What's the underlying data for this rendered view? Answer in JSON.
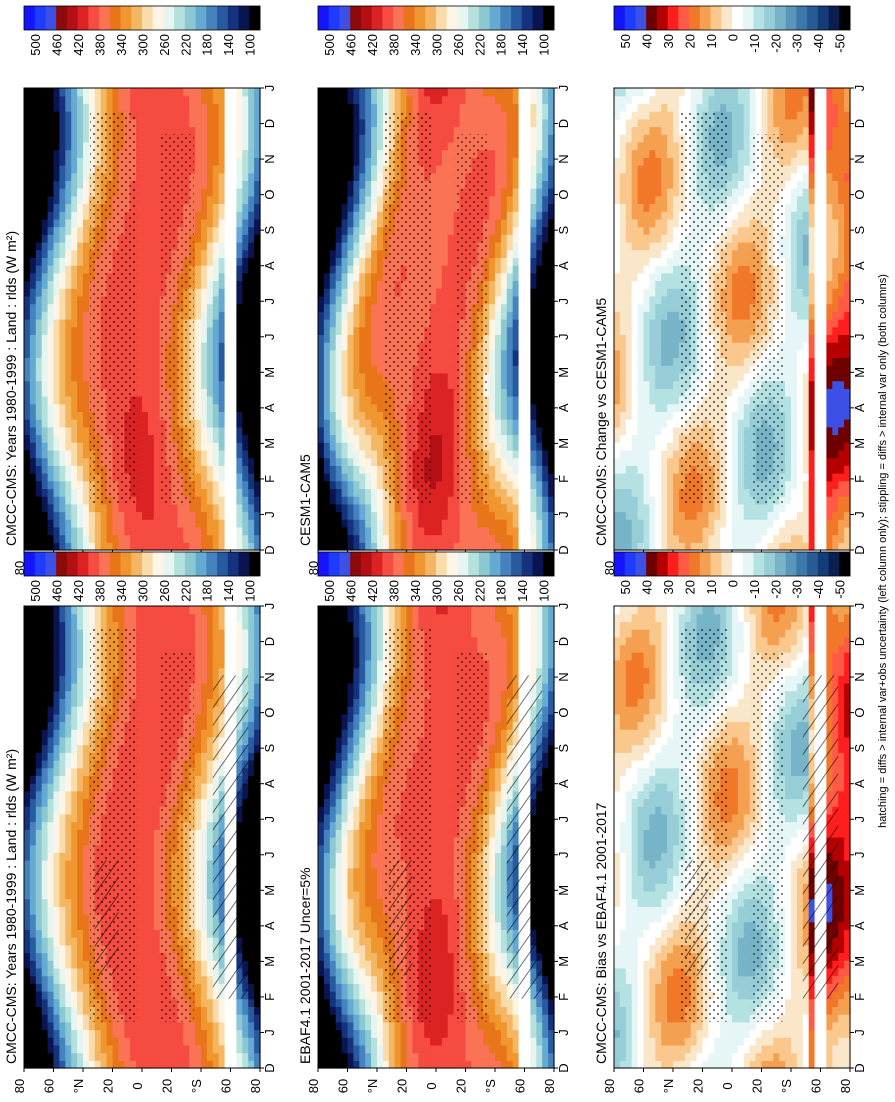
{
  "footer_note": "hatching = diffs > internal var+obs uncertainty (left column only); stippling = diffs > internal var only (both columns)",
  "chart_data": [
    {
      "type": "heatmap",
      "title": "CMCC-CMS: Years 1980-1999 : Land : rlds (W m²)",
      "x_ticks": [
        "D",
        "J",
        "F",
        "M",
        "A",
        "M",
        "J",
        "J",
        "A",
        "S",
        "O",
        "N",
        "D",
        "J"
      ],
      "y_ticks": [
        "80",
        "60",
        "°N",
        "20",
        "0",
        "20",
        "°S",
        "60",
        "80"
      ],
      "colorbar_ticks": [
        "500",
        "460",
        "420",
        "380",
        "340",
        "300",
        "260",
        "220",
        "180",
        "140",
        "100"
      ],
      "overlay": "hatching and stippling"
    },
    {
      "type": "heatmap",
      "title": "CMCC-CMS: Years 1980-1999 : Land : rlds (W m²)",
      "x_ticks": [
        "D",
        "J",
        "F",
        "M",
        "A",
        "M",
        "J",
        "J",
        "A",
        "S",
        "O",
        "N",
        "D",
        "J"
      ],
      "y_ticks": [
        "80",
        "60",
        "°N",
        "20",
        "0",
        "20",
        "°S",
        "60",
        "80"
      ],
      "colorbar_ticks": [
        "500",
        "460",
        "420",
        "380",
        "340",
        "300",
        "260",
        "220",
        "180",
        "140",
        "100"
      ],
      "overlay": "stippling"
    },
    {
      "type": "heatmap",
      "title": "EBAF4.1 2001-2017 Uncer=5%",
      "x_ticks": [
        "D",
        "J",
        "F",
        "M",
        "A",
        "M",
        "J",
        "J",
        "A",
        "S",
        "O",
        "N",
        "D",
        "J"
      ],
      "y_ticks": [
        "80",
        "60",
        "°N",
        "20",
        "0",
        "20",
        "°S",
        "60",
        "80"
      ],
      "colorbar_ticks": [
        "500",
        "460",
        "420",
        "380",
        "340",
        "300",
        "260",
        "220",
        "180",
        "140",
        "100"
      ],
      "overlay": "hatching and stippling"
    },
    {
      "type": "heatmap",
      "title": "CESM1-CAM5",
      "x_ticks": [
        "D",
        "J",
        "F",
        "M",
        "A",
        "M",
        "J",
        "J",
        "A",
        "S",
        "O",
        "N",
        "D",
        "J"
      ],
      "y_ticks": [
        "80",
        "60",
        "°N",
        "20",
        "0",
        "20",
        "°S",
        "60",
        "80"
      ],
      "colorbar_ticks": [
        "500",
        "460",
        "420",
        "380",
        "340",
        "300",
        "260",
        "220",
        "180",
        "140",
        "100"
      ],
      "overlay": "stippling"
    },
    {
      "type": "heatmap",
      "title": "CMCC-CMS: Bias vs EBAF4.1 2001-2017",
      "x_ticks": [
        "D",
        "J",
        "F",
        "M",
        "A",
        "M",
        "J",
        "J",
        "A",
        "S",
        "O",
        "N",
        "D",
        "J"
      ],
      "y_ticks": [
        "80",
        "60",
        "°N",
        "20",
        "0",
        "20",
        "°S",
        "60",
        "80"
      ],
      "colorbar_ticks": [
        "50",
        "40",
        "30",
        "20",
        "10",
        "0",
        "-10",
        "-20",
        "-30",
        "-40",
        "-50"
      ],
      "overlay": "hatching and stippling"
    },
    {
      "type": "heatmap",
      "title": "CMCC-CMS: Change vs CESM1-CAM5",
      "x_ticks": [
        "D",
        "J",
        "F",
        "M",
        "A",
        "M",
        "J",
        "J",
        "A",
        "S",
        "O",
        "N",
        "D",
        "J"
      ],
      "y_ticks": [
        "80",
        "60",
        "°N",
        "20",
        "0",
        "20",
        "°S",
        "60",
        "80"
      ],
      "colorbar_ticks": [
        "50",
        "40",
        "30",
        "20",
        "10",
        "0",
        "-10",
        "-20",
        "-30",
        "-40",
        "-50"
      ],
      "overlay": "stippling"
    }
  ],
  "colors": {
    "abs_scale": [
      "#1414ff",
      "#1e3cff",
      "#3c50e6",
      "#8c0a0a",
      "#b40f14",
      "#dc2323",
      "#f54b41",
      "#fa7355",
      "#e8751a",
      "#f0962e",
      "#f5b664",
      "#fadcaa",
      "#fff5e6",
      "#e6f5f0",
      "#b4e1dc",
      "#8cc8d2",
      "#64aad2",
      "#4682be",
      "#285aa0",
      "#14327d",
      "#0a1450",
      "#000000"
    ],
    "diff_scale": [
      "#1414ff",
      "#1e3cff",
      "#3c50e6",
      "#6e0000",
      "#b40000",
      "#ff1e1e",
      "#ff5a46",
      "#f07828",
      "#f5a050",
      "#fac88c",
      "#fae6c8",
      "#ffffff",
      "#e6f5f5",
      "#b4e1e1",
      "#96cdd7",
      "#78b4c8",
      "#5a96b9",
      "#3c78aa",
      "#285a96",
      "#143c78",
      "#0a1e50",
      "#000000"
    ],
    "missing": "#ffffff"
  }
}
